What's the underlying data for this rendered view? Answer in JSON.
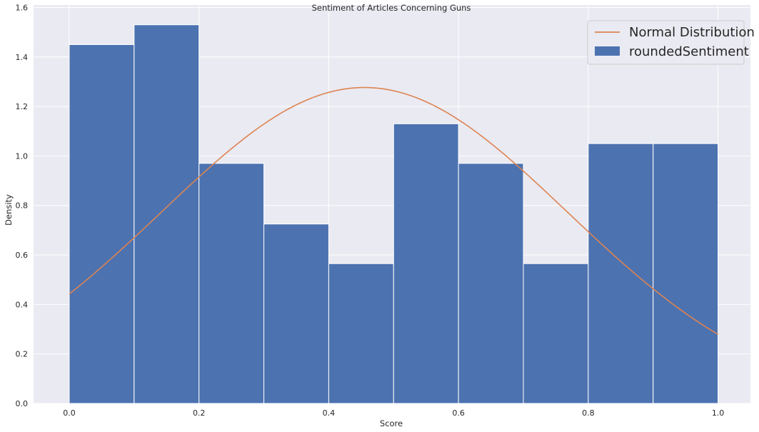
{
  "chart_data": {
    "type": "bar",
    "title": "Sentiment of Articles Concerning Guns",
    "xlabel": "Score",
    "ylabel": "Density",
    "xlim": [
      -0.055,
      1.05
    ],
    "ylim": [
      0,
      1.61
    ],
    "xticks": [
      "0.0",
      "0.2",
      "0.4",
      "0.6",
      "0.8",
      "1.0"
    ],
    "yticks": [
      "0.0",
      "0.2",
      "0.4",
      "0.6",
      "0.8",
      "1.0",
      "1.2",
      "1.4",
      "1.6"
    ],
    "grid": true,
    "legend_position": "top-right",
    "bins": [
      {
        "x0": 0.0,
        "x1": 0.1,
        "value": 1.45
      },
      {
        "x0": 0.1,
        "x1": 0.2,
        "value": 1.53
      },
      {
        "x0": 0.2,
        "x1": 0.3,
        "value": 0.97
      },
      {
        "x0": 0.3,
        "x1": 0.4,
        "value": 0.725
      },
      {
        "x0": 0.4,
        "x1": 0.5,
        "value": 0.565
      },
      {
        "x0": 0.5,
        "x1": 0.6,
        "value": 1.13
      },
      {
        "x0": 0.6,
        "x1": 0.7,
        "value": 0.97
      },
      {
        "x0": 0.7,
        "x1": 0.8,
        "value": 0.565
      },
      {
        "x0": 0.8,
        "x1": 0.9,
        "value": 1.05
      },
      {
        "x0": 0.9,
        "x1": 1.0,
        "value": 1.05
      }
    ],
    "series": [
      {
        "name": "roundedSentiment",
        "type": "histogram",
        "color": "#4c72b0"
      },
      {
        "name": "Normal Distribution",
        "type": "line",
        "color": "#dd8452",
        "mean": 0.455,
        "std": 0.3125,
        "x_range": [
          0.0,
          1.0
        ]
      }
    ]
  }
}
